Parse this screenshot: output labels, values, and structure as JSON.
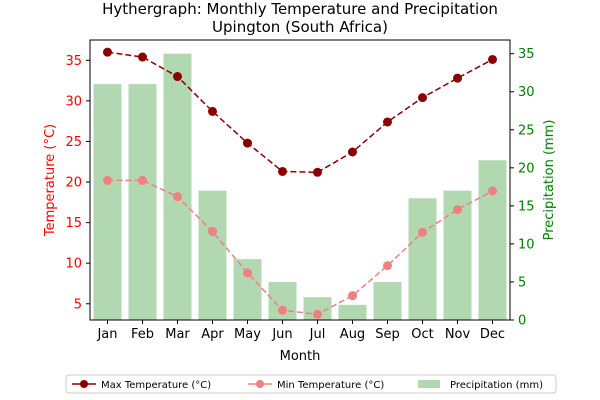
{
  "chart_data": {
    "type": "bar+line",
    "title": "Hythergraph: Monthly Temperature and Precipitation",
    "subtitle": "Upington (South Africa)",
    "xlabel": "Month",
    "ylabel_left": "Temperature (°C)",
    "ylabel_right": "Precipitation (mm)",
    "categories": [
      "Jan",
      "Feb",
      "Mar",
      "Apr",
      "May",
      "Jun",
      "Jul",
      "Aug",
      "Sep",
      "Oct",
      "Nov",
      "Dec"
    ],
    "ylim_left": [
      3,
      37.5
    ],
    "ylim_right": [
      0,
      36.8
    ],
    "yticks_left": [
      5,
      10,
      15,
      20,
      25,
      30,
      35
    ],
    "yticks_right": [
      0,
      5,
      10,
      15,
      20,
      25,
      30,
      35
    ],
    "grid": false,
    "legend_placement": "bottom-center",
    "colors": {
      "max_temp": "#8b0000",
      "min_temp": "#f08080",
      "precip": "#b2d8b2",
      "left_axis": "#ff0000",
      "right_axis": "#008000"
    },
    "series": [
      {
        "name": "Max Temperature (°C)",
        "kind": "line",
        "axis": "left",
        "values": [
          36.0,
          35.4,
          33.0,
          28.7,
          24.8,
          21.3,
          21.2,
          23.7,
          27.4,
          30.4,
          32.8,
          35.1
        ]
      },
      {
        "name": "Min Temperature (°C)",
        "kind": "line",
        "axis": "left",
        "values": [
          20.2,
          20.2,
          18.2,
          13.9,
          8.8,
          4.2,
          3.7,
          6.0,
          9.7,
          13.8,
          16.6,
          18.9
        ]
      },
      {
        "name": "Precipitation (mm)",
        "kind": "bar",
        "axis": "right",
        "values": [
          31,
          31,
          35,
          17,
          8,
          5,
          3,
          2,
          5,
          16,
          17,
          21
        ]
      }
    ]
  }
}
